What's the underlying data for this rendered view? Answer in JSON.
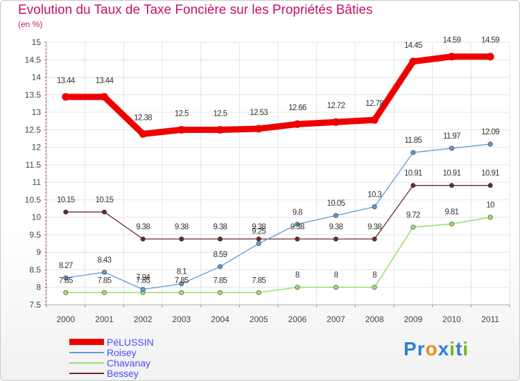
{
  "title": "Evolution du Taux de Taxe Foncière sur les Propriétés Bâties",
  "unit_label": "(en %)",
  "brand": {
    "letters": [
      "P",
      "r",
      "o",
      "x",
      "i",
      "t",
      "i"
    ],
    "colors": [
      "#2e7fd6",
      "#2e7fd6",
      "#f08a16",
      "#2e7fd6",
      "#6cb818",
      "#2e7fd6",
      "#6cb818"
    ]
  },
  "chart_data": {
    "type": "line",
    "title": "Evolution du Taux de Taxe Foncière sur les Propriétés Bâties",
    "ylabel": "(en %)",
    "xlabel": "",
    "categories": [
      "2000",
      "2001",
      "2002",
      "2003",
      "2004",
      "2005",
      "2006",
      "2007",
      "2008",
      "2009",
      "2010",
      "2011"
    ],
    "ylim": [
      7.5,
      15
    ],
    "yticks": [
      "7.5",
      "8",
      "8.5",
      "9",
      "9.5",
      "10",
      "10.5",
      "11",
      "11.5",
      "12",
      "12.5",
      "13",
      "13.5",
      "14",
      "14.5",
      "15"
    ],
    "grid": true,
    "legend_position": "bottom-left",
    "series": [
      {
        "name": "PéLUSSIN",
        "color": "#ee0000",
        "width": 9,
        "values": [
          13.44,
          13.44,
          12.38,
          12.5,
          12.5,
          12.53,
          12.66,
          12.72,
          12.78,
          14.45,
          14.59,
          14.59
        ],
        "labels": [
          "13.44",
          "13.44",
          "12.38",
          "12.5",
          "12.5",
          "12.53",
          "12.66",
          "12.72",
          "12.78",
          "14.45",
          "14.59",
          "14.59"
        ]
      },
      {
        "name": "Roisey",
        "color": "#5b9bd5",
        "width": 1.3,
        "values": [
          8.27,
          8.43,
          7.94,
          8.1,
          8.59,
          9.25,
          9.8,
          10.05,
          10.3,
          11.85,
          11.97,
          12.09
        ],
        "labels": [
          "8.27",
          "8.43",
          "7.94",
          "8.1",
          "8.59",
          "9.25",
          "9.8",
          "10.05",
          "10.3",
          "11.85",
          "11.97",
          "12.09"
        ]
      },
      {
        "name": "Chavanay",
        "color": "#9edf74",
        "width": 1.6,
        "values": [
          7.85,
          7.85,
          7.85,
          7.85,
          7.85,
          7.85,
          8,
          8,
          8,
          9.72,
          9.81,
          10
        ],
        "labels": [
          "7.85",
          "7.85",
          "7.85",
          "7.85",
          "7.85",
          "7.85",
          "8",
          "8",
          "8",
          "9.72",
          "9.81",
          "10"
        ]
      },
      {
        "name": "Bessey",
        "color": "#6b2a2a",
        "width": 1.3,
        "values": [
          10.15,
          10.15,
          9.38,
          9.38,
          9.38,
          9.38,
          9.38,
          9.38,
          9.38,
          10.91,
          10.91,
          10.91
        ],
        "labels": [
          "10.15",
          "10.15",
          "9.38",
          "9.38",
          "9.38",
          "9.38",
          "9.38",
          "9.38",
          "9.38",
          "10.91",
          "10.91",
          "10.91"
        ]
      }
    ]
  }
}
